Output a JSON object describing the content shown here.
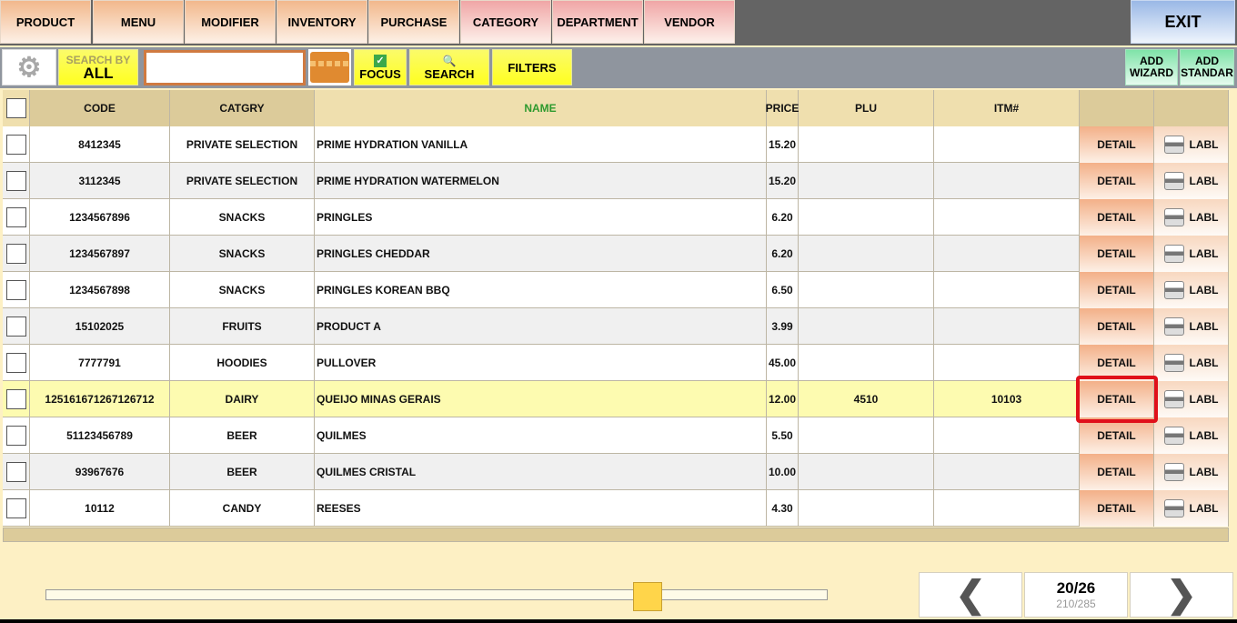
{
  "nav": [
    "PRODUCT",
    "MENU",
    "MODIFIER",
    "INVENTORY",
    "PURCHASE",
    "CATEGORY",
    "DEPARTMENT",
    "VENDOR"
  ],
  "exit_label": "EXIT",
  "toolbar": {
    "search_by_label": "SEARCH BY",
    "search_by_value": "ALL",
    "search_value": "",
    "focus_label": "FOCUS",
    "focus_checked": true,
    "search_label": "SEARCH",
    "filters_label": "FILTERS",
    "add_wizard": [
      "ADD",
      "WIZARD"
    ],
    "add_standard": [
      "ADD",
      "STANDAR"
    ]
  },
  "columns": [
    "",
    "CODE",
    "CATGRY",
    "NAME",
    "PRICE",
    "PLU",
    "ITM#",
    "",
    ""
  ],
  "rows": [
    {
      "code": "8412345",
      "cat": "PRIVATE SELECTION",
      "name": "PRIME HYDRATION VANILLA",
      "price": "15.20",
      "plu": "",
      "itm": ""
    },
    {
      "code": "3112345",
      "cat": "PRIVATE SELECTION",
      "name": "PRIME HYDRATION WATERMELON",
      "price": "15.20",
      "plu": "",
      "itm": ""
    },
    {
      "code": "1234567896",
      "cat": "SNACKS",
      "name": "PRINGLES",
      "price": "6.20",
      "plu": "",
      "itm": ""
    },
    {
      "code": "1234567897",
      "cat": "SNACKS",
      "name": "PRINGLES CHEDDAR",
      "price": "6.20",
      "plu": "",
      "itm": ""
    },
    {
      "code": "1234567898",
      "cat": "SNACKS",
      "name": "PRINGLES KOREAN BBQ",
      "price": "6.50",
      "plu": "",
      "itm": ""
    },
    {
      "code": "15102025",
      "cat": "FRUITS",
      "name": "PRODUCT A",
      "price": "3.99",
      "plu": "",
      "itm": ""
    },
    {
      "code": "7777791",
      "cat": "HOODIES",
      "name": "PULLOVER",
      "price": "45.00",
      "plu": "",
      "itm": ""
    },
    {
      "code": "125161671267126712",
      "cat": "DAIRY",
      "name": "QUEIJO MINAS GERAIS",
      "price": "12.00",
      "plu": "4510",
      "itm": "10103",
      "selected": true
    },
    {
      "code": "51123456789",
      "cat": "BEER",
      "name": "QUILMES",
      "price": "5.50",
      "plu": "",
      "itm": ""
    },
    {
      "code": "93967676",
      "cat": "BEER",
      "name": "QUILMES CRISTAL",
      "price": "10.00",
      "plu": "",
      "itm": ""
    },
    {
      "code": "10112",
      "cat": "CANDY",
      "name": "REESES",
      "price": "4.30",
      "plu": "",
      "itm": ""
    }
  ],
  "detail_label": "DETAIL",
  "label_label": "LABL",
  "pagination": {
    "page": "20/26",
    "records": "210/285",
    "slider_fraction": 0.77
  },
  "colors": {
    "name_header": "#2e9a2e",
    "highlight": "#e0101a",
    "selected_row": "#fdfbb0"
  }
}
